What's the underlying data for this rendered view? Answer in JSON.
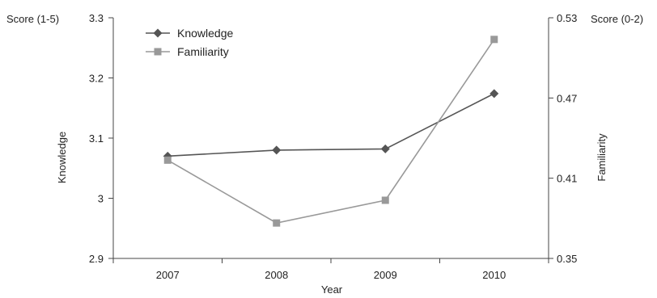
{
  "chart_data": {
    "type": "line",
    "categories": [
      "2007",
      "2008",
      "2009",
      "2010"
    ],
    "xlabel": "Year",
    "y_left": {
      "label": "Knowledge",
      "unit_label": "Score (1-5)",
      "range": [
        2.9,
        3.3
      ],
      "ticks": [
        "2.9",
        "3",
        "3.1",
        "3.2",
        "3.3"
      ]
    },
    "y_right": {
      "label": "Familiarity",
      "unit_label": "Score (0-2)",
      "range": [
        0.35,
        0.53
      ],
      "ticks": [
        "0.35",
        "0.41",
        "0.47",
        "0.53"
      ]
    },
    "series": [
      {
        "name": "Knowledge",
        "axis": "left",
        "marker": "diamond",
        "color": "#555555",
        "values": [
          3.07,
          3.08,
          3.082,
          3.174
        ]
      },
      {
        "name": "Familiarity",
        "axis": "right",
        "marker": "square",
        "color": "#999999",
        "values": [
          0.4235,
          0.3765,
          0.3935,
          0.5138
        ]
      }
    ],
    "legend_position": "top-left",
    "grid": false
  }
}
